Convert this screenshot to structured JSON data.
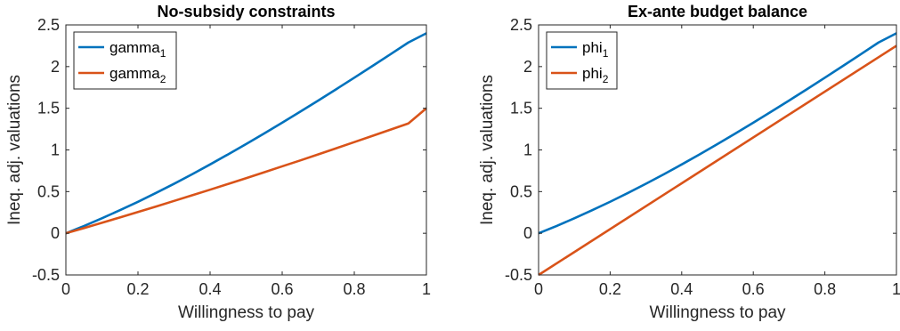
{
  "chart_data": [
    {
      "type": "line",
      "title": "No-subsidy constraints",
      "xlabel": "Willingness to pay",
      "ylabel": "Ineq. adj. valuations",
      "xlim": [
        0,
        1
      ],
      "ylim": [
        -0.5,
        2.5
      ],
      "xticks": [
        0,
        0.2,
        0.4,
        0.6,
        0.8,
        1
      ],
      "xtick_labels": [
        "0",
        "0.2",
        "0.4",
        "0.6",
        "0.8",
        "1"
      ],
      "yticks": [
        -0.5,
        0,
        0.5,
        1,
        1.5,
        2,
        2.5
      ],
      "ytick_labels": [
        "-0.5",
        "0",
        "0.5",
        "1",
        "1.5",
        "2",
        "2.5"
      ],
      "grid": false,
      "legend_position": "top-left",
      "series": [
        {
          "name": "gamma",
          "name_sub": "1",
          "color": "#0072BD",
          "x": [
            0,
            0.05,
            0.1,
            0.15,
            0.2,
            0.25,
            0.3,
            0.35,
            0.4,
            0.45,
            0.5,
            0.55,
            0.6,
            0.65,
            0.7,
            0.75,
            0.8,
            0.85,
            0.9,
            0.95,
            1
          ],
          "y": [
            0,
            0.087,
            0.18,
            0.277,
            0.378,
            0.484,
            0.594,
            0.708,
            0.826,
            0.947,
            1.071,
            1.198,
            1.327,
            1.459,
            1.593,
            1.729,
            1.867,
            2.006,
            2.147,
            2.289,
            2.4
          ]
        },
        {
          "name": "gamma",
          "name_sub": "2",
          "color": "#D95319",
          "x": [
            0,
            0.05,
            0.1,
            0.15,
            0.2,
            0.25,
            0.3,
            0.35,
            0.4,
            0.45,
            0.5,
            0.55,
            0.6,
            0.65,
            0.7,
            0.75,
            0.8,
            0.85,
            0.9,
            0.95,
            1
          ],
          "y": [
            0,
            0.062,
            0.126,
            0.19,
            0.255,
            0.321,
            0.388,
            0.455,
            0.523,
            0.592,
            0.661,
            0.732,
            0.803,
            0.874,
            0.947,
            1.02,
            1.094,
            1.168,
            1.243,
            1.318,
            1.5
          ]
        }
      ]
    },
    {
      "type": "line",
      "title": "Ex-ante budget balance",
      "xlabel": "Willingness to pay",
      "ylabel": "Ineq. adj. valuations",
      "xlim": [
        0,
        1
      ],
      "ylim": [
        -0.5,
        2.5
      ],
      "xticks": [
        0,
        0.2,
        0.4,
        0.6,
        0.8,
        1
      ],
      "xtick_labels": [
        "0",
        "0.2",
        "0.4",
        "0.6",
        "0.8",
        "1"
      ],
      "yticks": [
        -0.5,
        0,
        0.5,
        1,
        1.5,
        2,
        2.5
      ],
      "ytick_labels": [
        "-0.5",
        "0",
        "0.5",
        "1",
        "1.5",
        "2",
        "2.5"
      ],
      "grid": false,
      "legend_position": "top-left",
      "series": [
        {
          "name": "phi",
          "name_sub": "1",
          "color": "#0072BD",
          "x": [
            0,
            0.05,
            0.1,
            0.15,
            0.2,
            0.25,
            0.3,
            0.35,
            0.4,
            0.45,
            0.5,
            0.55,
            0.6,
            0.65,
            0.7,
            0.75,
            0.8,
            0.85,
            0.9,
            0.95,
            1
          ],
          "y": [
            0,
            0.087,
            0.18,
            0.277,
            0.378,
            0.484,
            0.594,
            0.708,
            0.826,
            0.947,
            1.071,
            1.198,
            1.327,
            1.459,
            1.593,
            1.729,
            1.867,
            2.006,
            2.147,
            2.289,
            2.4
          ]
        },
        {
          "name": "phi",
          "name_sub": "2",
          "color": "#D95319",
          "x": [
            0,
            1
          ],
          "y": [
            -0.5,
            2.25
          ]
        }
      ]
    }
  ]
}
